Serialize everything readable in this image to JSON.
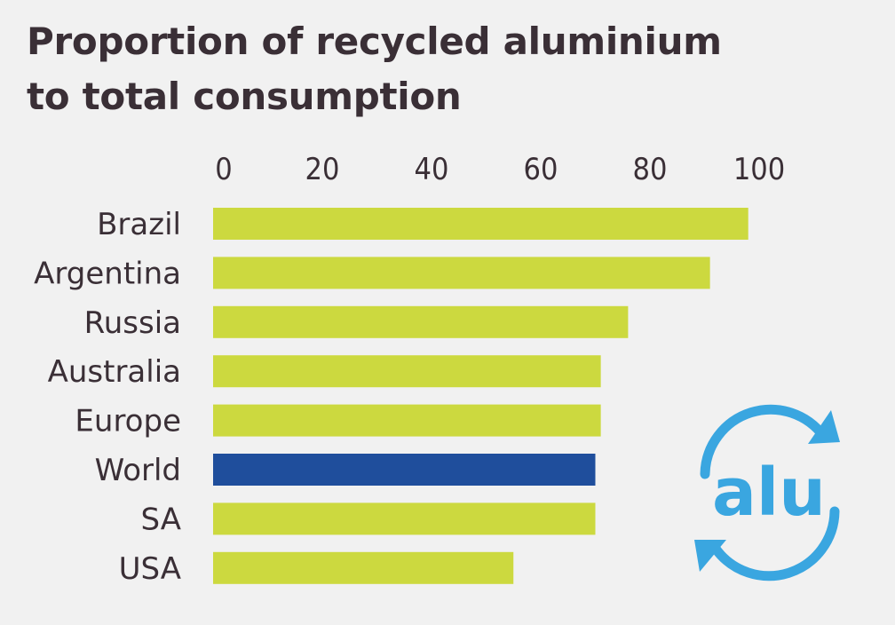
{
  "chart_data": {
    "type": "bar",
    "orientation": "horizontal",
    "title_lines": [
      "Proportion of recycled aluminium",
      "to total consumption"
    ],
    "categories": [
      "Brazil",
      "Argentina",
      "Russia",
      "Australia",
      "Europe",
      "World",
      "SA",
      "USA"
    ],
    "values": [
      98,
      91,
      76,
      71,
      71,
      70,
      70,
      55
    ],
    "highlight": "World",
    "xlim": [
      0,
      100
    ],
    "xticks": [
      0,
      20,
      40,
      60,
      80,
      100
    ],
    "xlabel": "",
    "ylabel": "",
    "grid": false,
    "axis_position": "top"
  },
  "colors": {
    "bar": "#ccd93f",
    "highlight_bar": "#1f4e9c",
    "text": "#3a2f36",
    "logo": "#3aa6e0",
    "background": "#f1f1f1"
  },
  "logo": {
    "text": "alu",
    "icon": "recycle-arrows-icon"
  }
}
